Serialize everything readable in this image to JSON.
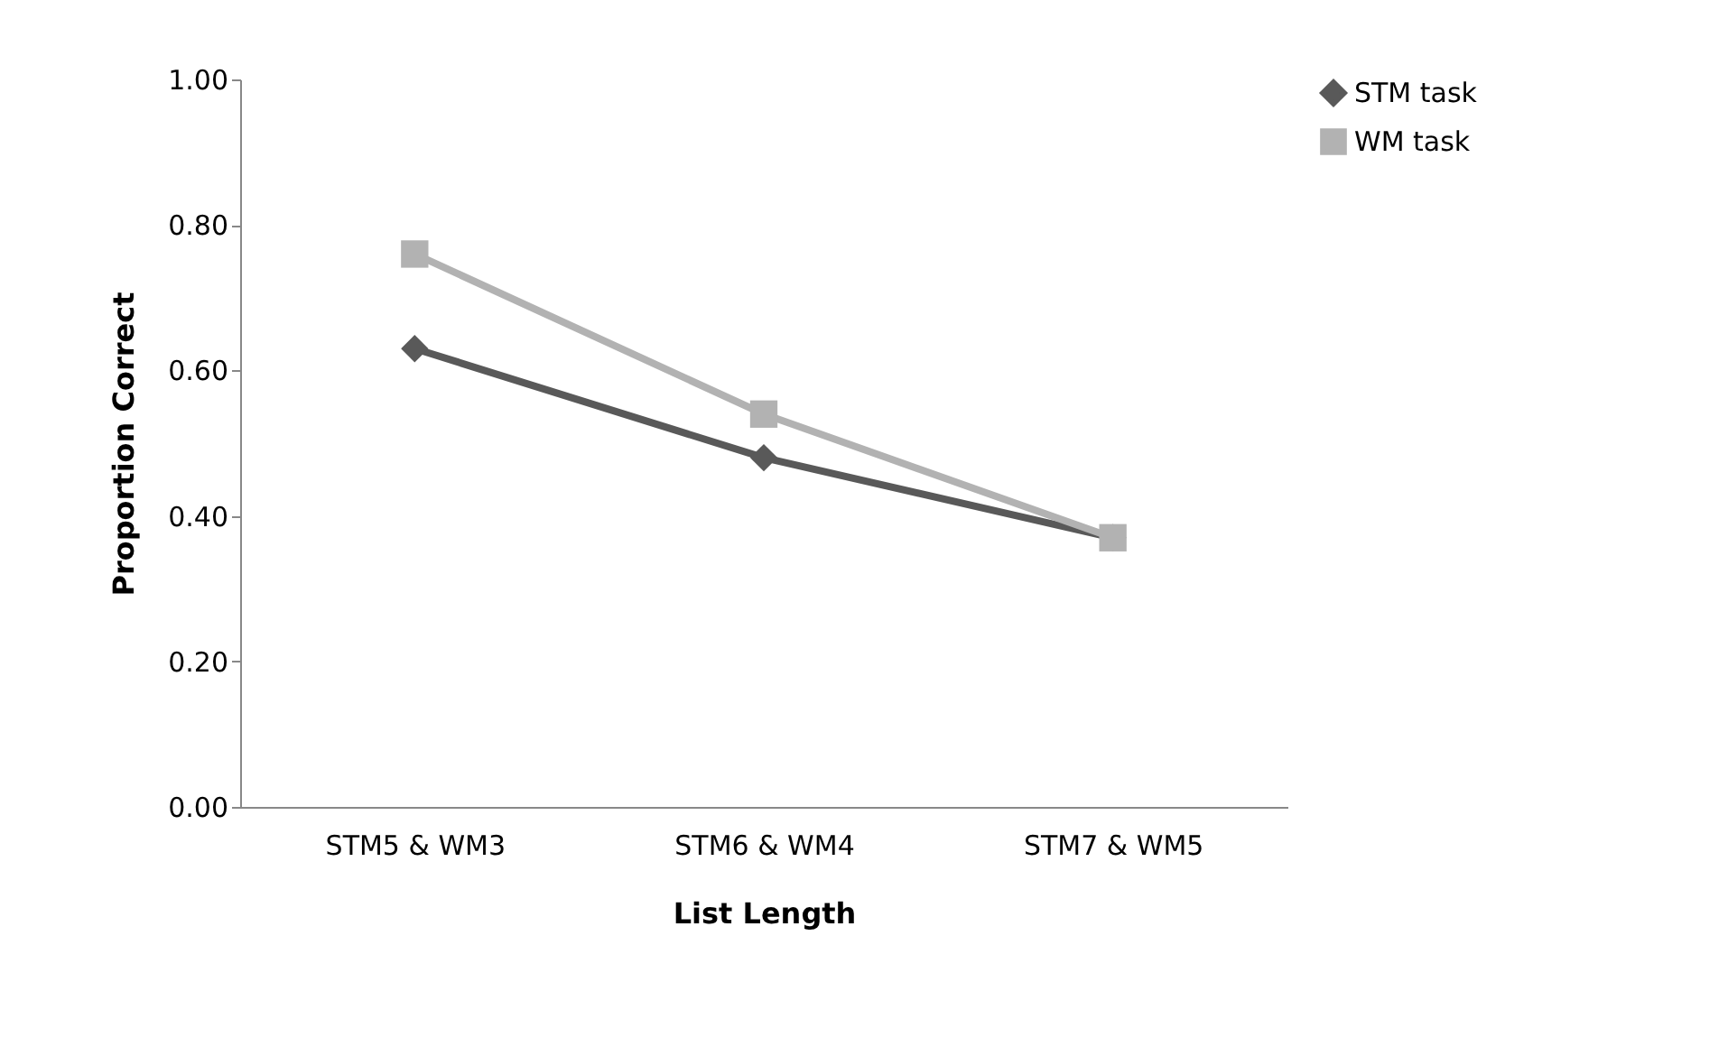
{
  "chart_data": {
    "type": "line",
    "xlabel": "List Length",
    "ylabel": "Proportion Correct",
    "categories": [
      "STM5 & WM3",
      "STM6 & WM4",
      "STM7 & WM5"
    ],
    "series": [
      {
        "name": "STM task",
        "color": "#595959",
        "marker": "diamond",
        "values": [
          0.63,
          0.48,
          0.37
        ]
      },
      {
        "name": "WM task",
        "color": "#b2b2b2",
        "marker": "square",
        "values": [
          0.76,
          0.54,
          0.37
        ]
      }
    ],
    "ylim": [
      0,
      1
    ],
    "yticks": [
      {
        "value": 0,
        "label": "0.00"
      },
      {
        "value": 0.2,
        "label": "0.20"
      },
      {
        "value": 0.4,
        "label": "0.40"
      },
      {
        "value": 0.6,
        "label": "0.60"
      },
      {
        "value": 0.8,
        "label": "0.80"
      },
      {
        "value": 1,
        "label": "1.00"
      }
    ],
    "grid": false,
    "legend": "right",
    "line_style": "solid"
  }
}
